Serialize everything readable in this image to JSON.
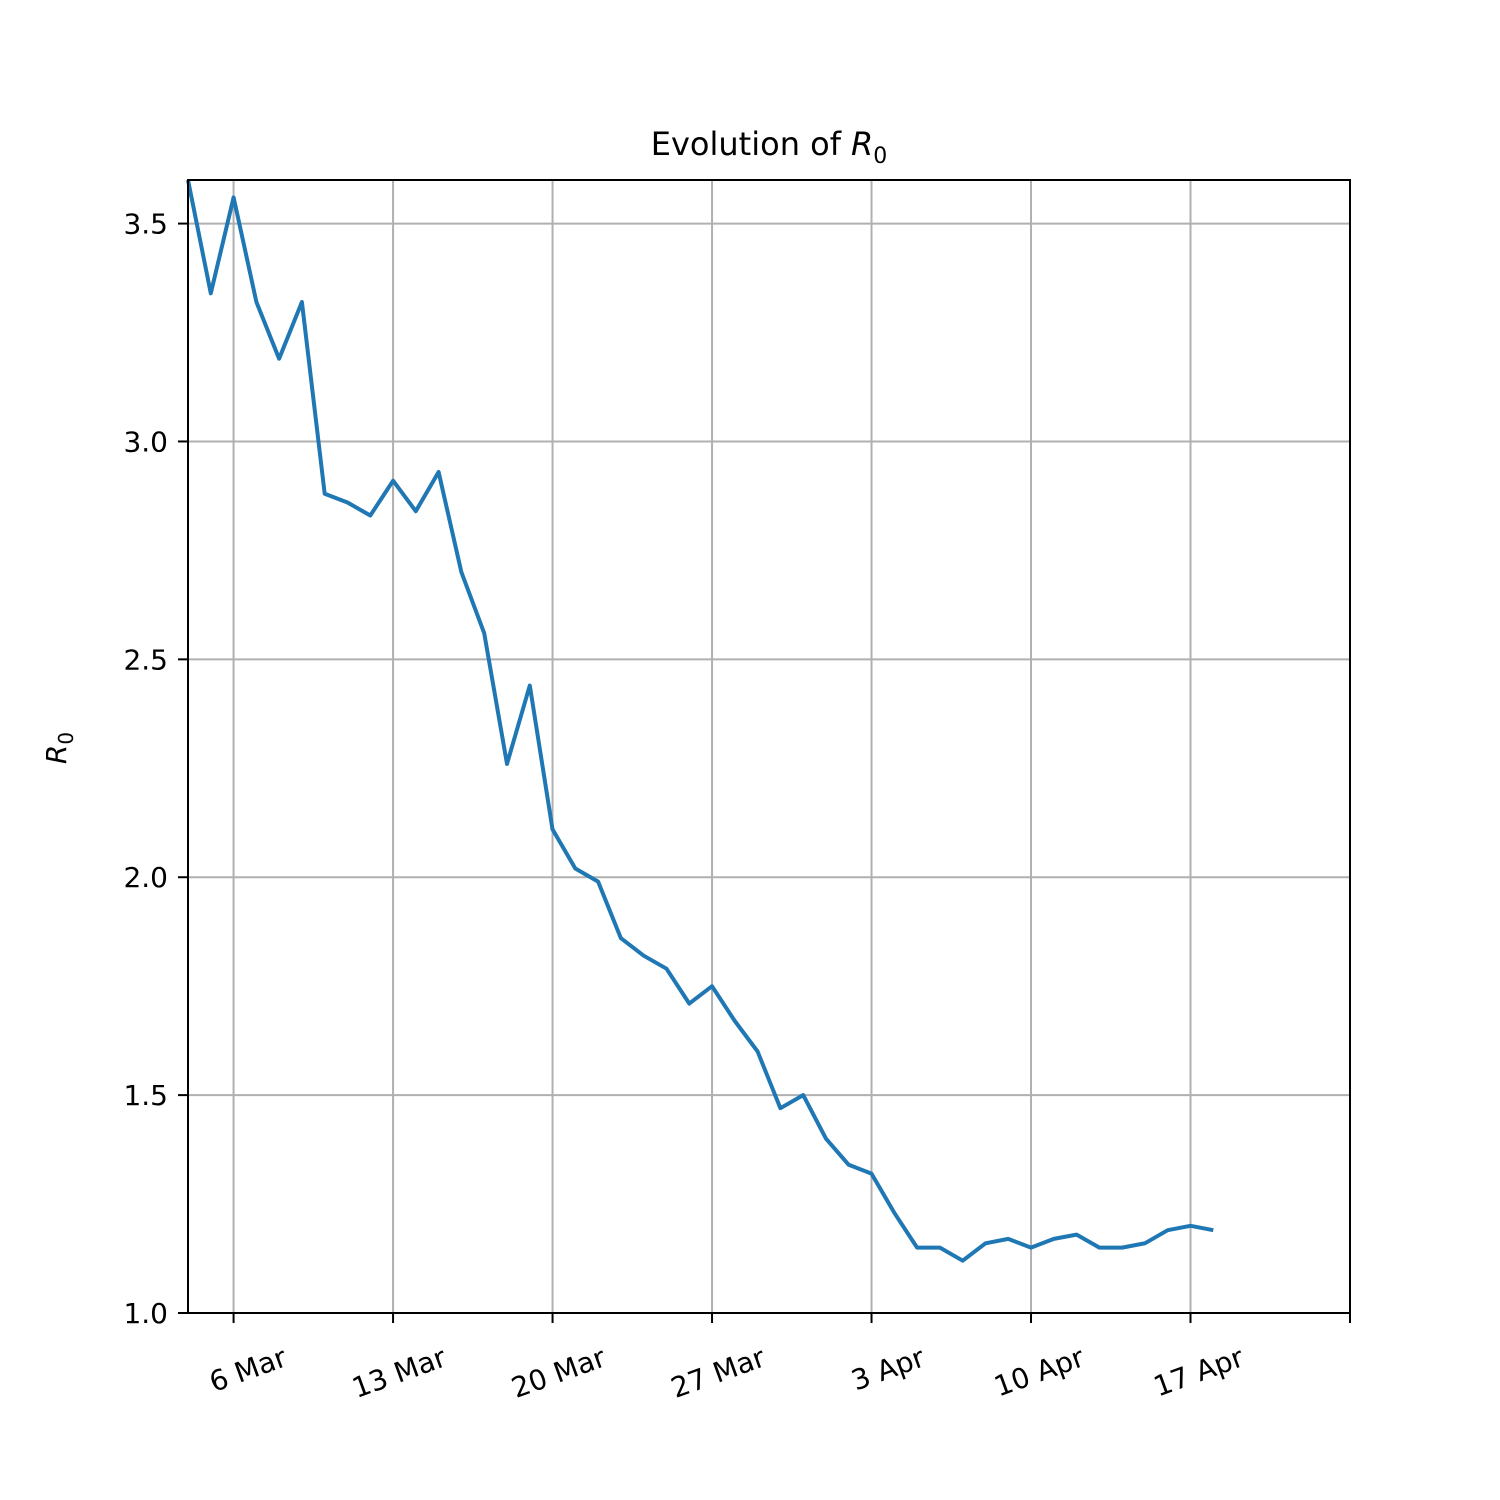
{
  "chart_data": {
    "type": "line",
    "title": "Evolution of",
    "title_symbol": "R",
    "title_subscript": "0",
    "ylabel_symbol": "R",
    "ylabel_subscript": "0",
    "xlabel": "",
    "x_start": "2020-03-04",
    "x_end": "2020-04-24",
    "ylim": [
      1.0,
      3.6
    ],
    "grid": true,
    "line_color": "#1f77b4",
    "grid_color": "#b0b0b0",
    "x_ticks": [
      {
        "date": "2020-03-06",
        "label": "6 Mar"
      },
      {
        "date": "2020-03-13",
        "label": "13 Mar"
      },
      {
        "date": "2020-03-20",
        "label": "20 Mar"
      },
      {
        "date": "2020-03-27",
        "label": "27 Mar"
      },
      {
        "date": "2020-04-03",
        "label": "3 Apr"
      },
      {
        "date": "2020-04-10",
        "label": "10 Apr"
      },
      {
        "date": "2020-04-17",
        "label": "17 Apr"
      },
      {
        "date": "2020-04-24",
        "label": ""
      }
    ],
    "y_ticks": [
      {
        "value": 1.0,
        "label": "1.0"
      },
      {
        "value": 1.5,
        "label": "1.5"
      },
      {
        "value": 2.0,
        "label": "2.0"
      },
      {
        "value": 2.5,
        "label": "2.5"
      },
      {
        "value": 3.0,
        "label": "3.0"
      },
      {
        "value": 3.5,
        "label": "3.5"
      }
    ],
    "series": [
      {
        "x": [
          "2020-03-04",
          "2020-03-05",
          "2020-03-06",
          "2020-03-07",
          "2020-03-08",
          "2020-03-09",
          "2020-03-10",
          "2020-03-11",
          "2020-03-12",
          "2020-03-13",
          "2020-03-14",
          "2020-03-15",
          "2020-03-16",
          "2020-03-17",
          "2020-03-18",
          "2020-03-19",
          "2020-03-20",
          "2020-03-21",
          "2020-03-22",
          "2020-03-23",
          "2020-03-24",
          "2020-03-25",
          "2020-03-26",
          "2020-03-27",
          "2020-03-28",
          "2020-03-29",
          "2020-03-30",
          "2020-03-31",
          "2020-04-01",
          "2020-04-02",
          "2020-04-03",
          "2020-04-04",
          "2020-04-05",
          "2020-04-06",
          "2020-04-07",
          "2020-04-08",
          "2020-04-09",
          "2020-04-10",
          "2020-04-11",
          "2020-04-12",
          "2020-04-13",
          "2020-04-14",
          "2020-04-15",
          "2020-04-16",
          "2020-04-17",
          "2020-04-18"
        ],
        "values": [
          3.6,
          3.34,
          3.56,
          3.32,
          3.19,
          3.32,
          2.88,
          2.86,
          2.83,
          2.91,
          2.84,
          2.93,
          2.7,
          2.56,
          2.26,
          2.44,
          2.11,
          2.02,
          1.99,
          1.86,
          1.82,
          1.79,
          1.71,
          1.75,
          1.67,
          1.6,
          1.47,
          1.5,
          1.4,
          1.34,
          1.32,
          1.23,
          1.15,
          1.15,
          1.12,
          1.16,
          1.17,
          1.15,
          1.17,
          1.18,
          1.15,
          1.15,
          1.16,
          1.19,
          1.2,
          1.19
        ]
      }
    ]
  }
}
